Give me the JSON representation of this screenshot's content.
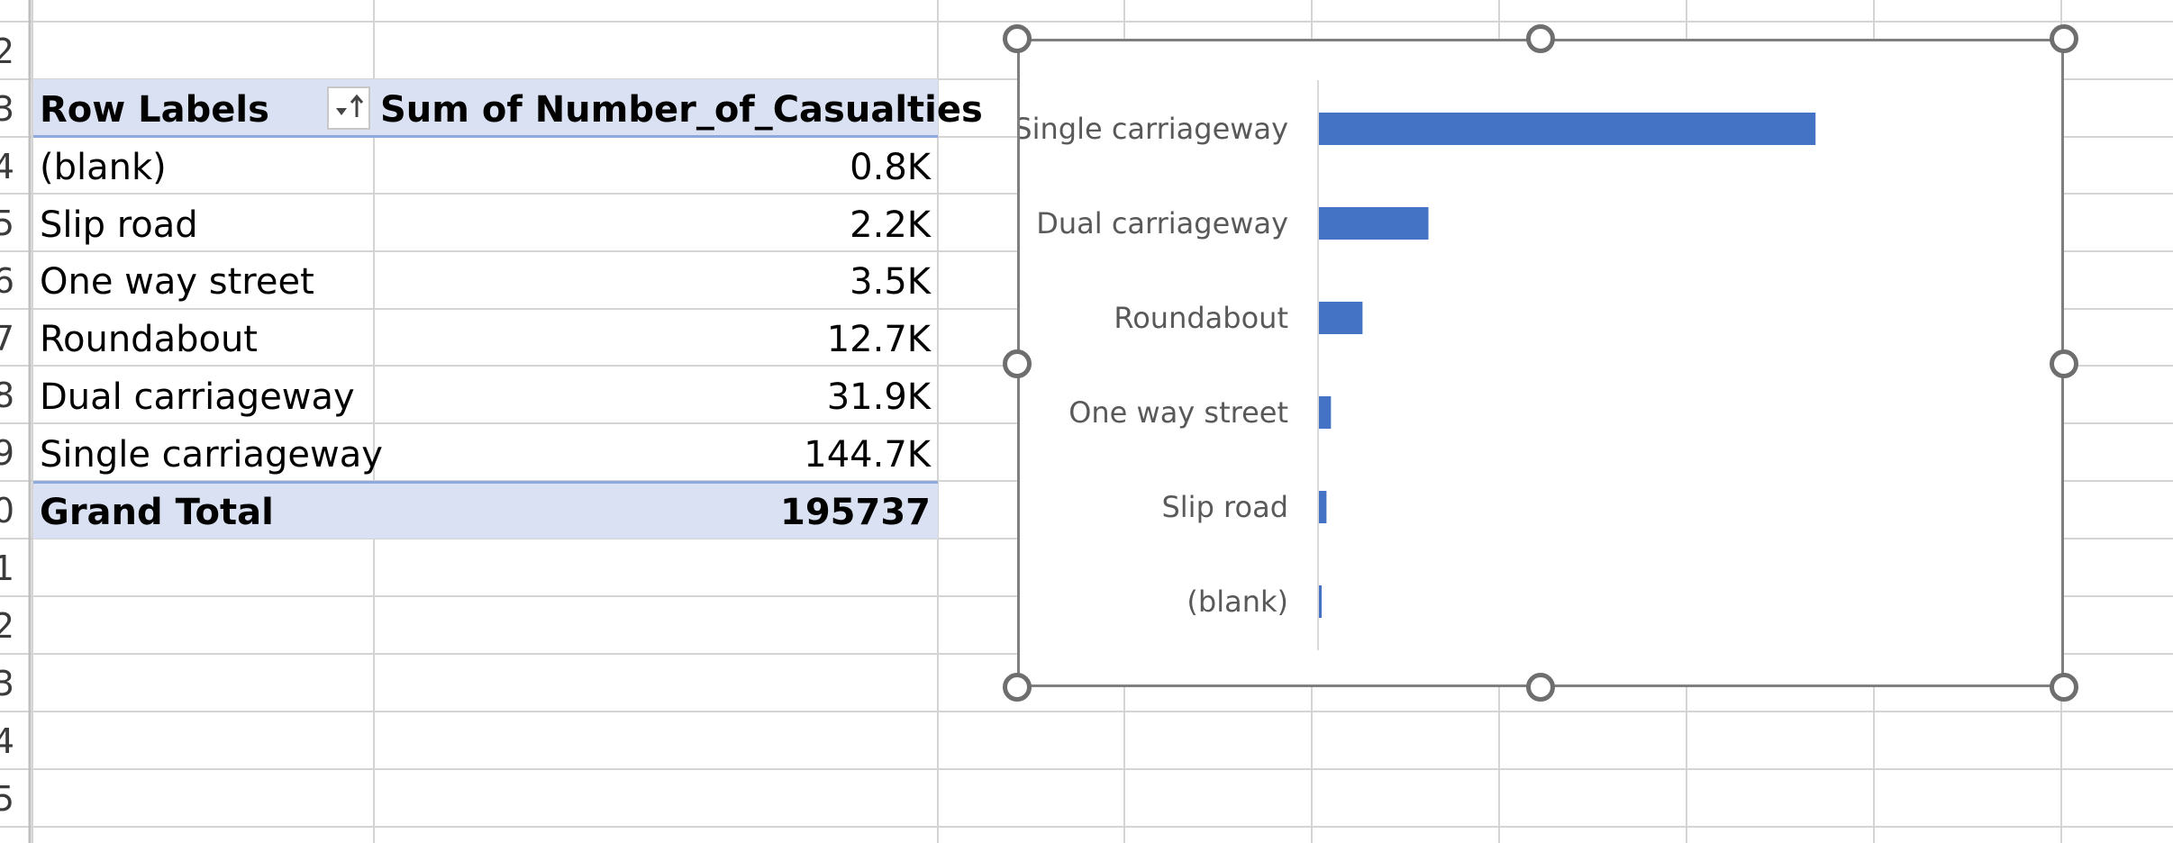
{
  "row_numbers": [
    "2",
    "3",
    "4",
    "5",
    "6",
    "7",
    "8",
    "9",
    "0",
    "1",
    "2",
    "3",
    "4",
    "5"
  ],
  "pivot": {
    "header_label": "Row Labels",
    "header_value": "Sum of Number_of_Casualties",
    "filter_button_icon": "sort-ascending-filter-icon",
    "rows": [
      {
        "label": "(blank)",
        "value": "0.8K"
      },
      {
        "label": "Slip road",
        "value": "2.2K"
      },
      {
        "label": "One way street",
        "value": "3.5K"
      },
      {
        "label": "Roundabout",
        "value": "12.7K"
      },
      {
        "label": "Dual carriageway",
        "value": "31.9K"
      },
      {
        "label": "Single carriageway",
        "value": "144.7K"
      }
    ],
    "total_label": "Grand Total",
    "total_value": "195737"
  },
  "chart_data": {
    "type": "bar",
    "orientation": "horizontal",
    "categories": [
      "Single carriageway",
      "Dual carriageway",
      "Roundabout",
      "One way street",
      "Slip road",
      "(blank)"
    ],
    "values": [
      144700,
      31900,
      12700,
      3500,
      2200,
      800
    ],
    "title": "",
    "xlabel": "",
    "ylabel": "",
    "xlim": [
      0,
      210000
    ],
    "grid": false,
    "legend": "none",
    "bar_color": "#4472c4"
  },
  "colors": {
    "pivot_header_band": "#d9e1f2",
    "pivot_border": "#8ea9db",
    "gridline": "#d4d4d4",
    "chart_border": "#7f7f7f"
  }
}
